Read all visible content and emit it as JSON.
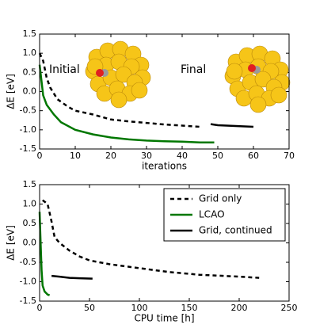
{
  "chart_data": [
    {
      "type": "line",
      "xlabel": "iterations",
      "ylabel": "ΔE [eV]",
      "xlim": [
        0,
        70
      ],
      "xticks": [
        0,
        10,
        20,
        30,
        40,
        50,
        60,
        70
      ],
      "ylim": [
        -1.5,
        1.5
      ],
      "yticks": [
        -1.5,
        {
          "value": -1,
          "label": "-1.0"
        },
        -0.5,
        {
          "value": 0,
          "label": "0.0"
        },
        0.5,
        {
          "value": 1,
          "label": "1.0"
        },
        1.5
      ],
      "annotations": [
        "Initial",
        "Final"
      ],
      "series": [
        {
          "color": "#000000",
          "dash": "dashed",
          "x": [
            0,
            1,
            2,
            3,
            5,
            8,
            10,
            15,
            20,
            25,
            30,
            35,
            40,
            45
          ],
          "values": [
            1.0,
            0.8,
            0.35,
            0.1,
            -0.2,
            -0.4,
            -0.5,
            -0.6,
            -0.73,
            -0.78,
            -0.82,
            -0.86,
            -0.89,
            -0.92
          ]
        },
        {
          "color": "#007700",
          "dash": "solid",
          "x": [
            0,
            1,
            2,
            4,
            6,
            10,
            15,
            20,
            25,
            30,
            35,
            40,
            45,
            49
          ],
          "values": [
            0.7,
            -0.1,
            -0.35,
            -0.6,
            -0.8,
            -1.0,
            -1.12,
            -1.2,
            -1.25,
            -1.28,
            -1.3,
            -1.31,
            -1.33,
            -1.33
          ]
        },
        {
          "color": "#000000",
          "dash": "solid",
          "x": [
            48,
            50,
            55,
            60
          ],
          "values": [
            -0.85,
            -0.88,
            -0.9,
            -0.92
          ]
        }
      ]
    },
    {
      "type": "line",
      "xlabel": "CPU time [h]",
      "ylabel": "ΔE [eV]",
      "xlim": [
        0,
        250
      ],
      "xticks": [
        0,
        50,
        100,
        150,
        200,
        250
      ],
      "ylim": [
        -1.5,
        1.5
      ],
      "yticks": [
        -1.5,
        {
          "value": -1,
          "label": "-1.0"
        },
        -0.5,
        {
          "value": 0,
          "label": "0.0"
        },
        0.5,
        {
          "value": 1,
          "label": "1.0"
        },
        1.5
      ],
      "legend": "upper right",
      "series": [
        {
          "name": "Grid only",
          "color": "#000000",
          "dash": "dashed",
          "x": [
            3,
            8,
            12,
            15,
            20,
            30,
            40,
            50,
            70,
            100,
            130,
            160,
            200,
            220
          ],
          "values": [
            1.1,
            1.0,
            0.55,
            0.15,
            0.0,
            -0.2,
            -0.35,
            -0.45,
            -0.55,
            -0.65,
            -0.75,
            -0.82,
            -0.87,
            -0.9
          ]
        },
        {
          "name": "LCAO",
          "color": "#007700",
          "dash": "solid",
          "x": [
            0,
            1,
            2,
            3,
            5,
            8,
            10
          ],
          "values": [
            0.8,
            0.0,
            -0.7,
            -1.1,
            -1.25,
            -1.33,
            -1.35
          ]
        },
        {
          "name": "Grid, continued",
          "color": "#000000",
          "dash": "solid",
          "x": [
            12,
            20,
            30,
            40,
            53
          ],
          "values": [
            -0.85,
            -0.87,
            -0.9,
            -0.91,
            -0.92
          ]
        }
      ]
    }
  ]
}
